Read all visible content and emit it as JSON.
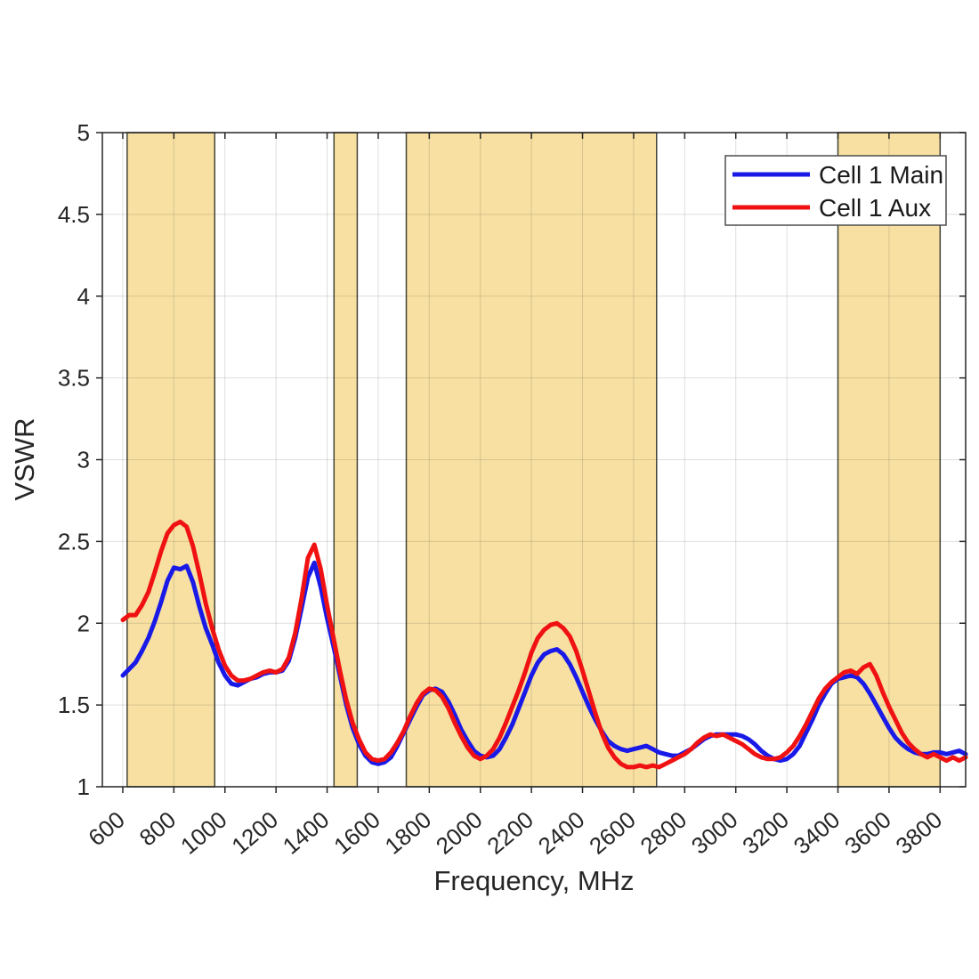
{
  "figure": {
    "background": "#FFFFFF"
  },
  "chart_data": {
    "type": "line",
    "title": "",
    "xlabel": "Frequency, MHz",
    "ylabel": "VSWR",
    "xlim": [
      520,
      3900
    ],
    "ylim": [
      1,
      5
    ],
    "x_ticks": [
      600,
      800,
      1000,
      1200,
      1400,
      1600,
      1800,
      2000,
      2200,
      2400,
      2600,
      2800,
      3000,
      3200,
      3400,
      3600,
      3800
    ],
    "y_ticks": [
      1,
      1.5,
      2,
      2.5,
      3,
      3.5,
      4,
      4.5,
      5
    ],
    "grid": true,
    "grid_color": "#262626",
    "grid_alpha": 0.15,
    "axis_color": "#262626",
    "band_fill_color": "#F7E0A1",
    "band_edge_color": "#46443A",
    "legend_position": "top-right",
    "highlight_bands": [
      {
        "from": 617,
        "to": 960
      },
      {
        "from": 1427,
        "to": 1518
      },
      {
        "from": 1710,
        "to": 2690
      },
      {
        "from": 3400,
        "to": 3800
      }
    ],
    "x": [
      600,
      625,
      650,
      675,
      700,
      725,
      750,
      775,
      800,
      825,
      850,
      875,
      900,
      925,
      950,
      975,
      1000,
      1025,
      1050,
      1075,
      1100,
      1125,
      1150,
      1175,
      1200,
      1225,
      1250,
      1275,
      1300,
      1325,
      1350,
      1375,
      1400,
      1425,
      1450,
      1475,
      1500,
      1525,
      1550,
      1575,
      1600,
      1625,
      1650,
      1675,
      1700,
      1725,
      1750,
      1775,
      1800,
      1825,
      1850,
      1875,
      1900,
      1925,
      1950,
      1975,
      2000,
      2025,
      2050,
      2075,
      2100,
      2125,
      2150,
      2175,
      2200,
      2225,
      2250,
      2275,
      2300,
      2325,
      2350,
      2375,
      2400,
      2425,
      2450,
      2475,
      2500,
      2525,
      2550,
      2575,
      2600,
      2625,
      2650,
      2675,
      2700,
      2725,
      2750,
      2775,
      2800,
      2825,
      2850,
      2875,
      2900,
      2925,
      2950,
      2975,
      3000,
      3025,
      3050,
      3075,
      3100,
      3125,
      3150,
      3175,
      3200,
      3225,
      3250,
      3275,
      3300,
      3325,
      3350,
      3375,
      3400,
      3425,
      3450,
      3475,
      3500,
      3525,
      3550,
      3575,
      3600,
      3625,
      3650,
      3675,
      3700,
      3725,
      3750,
      3775,
      3800,
      3825,
      3850,
      3875,
      3900
    ],
    "series": [
      {
        "name": "Cell 1 Main",
        "color": "#1A1AE8",
        "y": [
          1.68,
          1.72,
          1.76,
          1.83,
          1.91,
          2.01,
          2.13,
          2.26,
          2.34,
          2.33,
          2.35,
          2.25,
          2.1,
          1.97,
          1.87,
          1.76,
          1.68,
          1.63,
          1.62,
          1.64,
          1.66,
          1.67,
          1.69,
          1.7,
          1.7,
          1.71,
          1.77,
          1.91,
          2.09,
          2.28,
          2.37,
          2.22,
          2.03,
          1.86,
          1.68,
          1.5,
          1.36,
          1.26,
          1.19,
          1.15,
          1.14,
          1.15,
          1.18,
          1.25,
          1.33,
          1.41,
          1.49,
          1.56,
          1.59,
          1.6,
          1.58,
          1.52,
          1.44,
          1.35,
          1.28,
          1.22,
          1.19,
          1.18,
          1.19,
          1.23,
          1.3,
          1.38,
          1.48,
          1.58,
          1.68,
          1.76,
          1.81,
          1.83,
          1.84,
          1.81,
          1.75,
          1.67,
          1.58,
          1.49,
          1.41,
          1.34,
          1.28,
          1.25,
          1.23,
          1.22,
          1.23,
          1.24,
          1.25,
          1.23,
          1.21,
          1.2,
          1.19,
          1.19,
          1.21,
          1.23,
          1.26,
          1.29,
          1.31,
          1.32,
          1.32,
          1.32,
          1.32,
          1.31,
          1.29,
          1.26,
          1.22,
          1.19,
          1.17,
          1.16,
          1.17,
          1.2,
          1.25,
          1.33,
          1.41,
          1.5,
          1.57,
          1.63,
          1.66,
          1.67,
          1.68,
          1.67,
          1.63,
          1.57,
          1.5,
          1.43,
          1.36,
          1.3,
          1.26,
          1.23,
          1.21,
          1.2,
          1.2,
          1.21,
          1.21,
          1.2,
          1.21,
          1.22,
          1.2
        ]
      },
      {
        "name": "Cell 1 Aux",
        "color": "#F01212",
        "y": [
          2.02,
          2.05,
          2.05,
          2.11,
          2.19,
          2.31,
          2.44,
          2.55,
          2.6,
          2.62,
          2.59,
          2.47,
          2.3,
          2.12,
          1.97,
          1.84,
          1.74,
          1.68,
          1.65,
          1.65,
          1.66,
          1.68,
          1.7,
          1.71,
          1.7,
          1.72,
          1.79,
          1.94,
          2.15,
          2.4,
          2.48,
          2.33,
          2.11,
          1.91,
          1.71,
          1.53,
          1.39,
          1.29,
          1.21,
          1.17,
          1.16,
          1.17,
          1.21,
          1.27,
          1.34,
          1.43,
          1.51,
          1.57,
          1.6,
          1.59,
          1.55,
          1.48,
          1.39,
          1.31,
          1.24,
          1.19,
          1.17,
          1.19,
          1.23,
          1.3,
          1.39,
          1.49,
          1.59,
          1.7,
          1.82,
          1.91,
          1.96,
          1.99,
          2.0,
          1.97,
          1.92,
          1.83,
          1.71,
          1.58,
          1.45,
          1.33,
          1.24,
          1.18,
          1.14,
          1.12,
          1.12,
          1.13,
          1.12,
          1.13,
          1.12,
          1.14,
          1.16,
          1.18,
          1.2,
          1.23,
          1.27,
          1.3,
          1.32,
          1.31,
          1.32,
          1.3,
          1.28,
          1.26,
          1.23,
          1.2,
          1.18,
          1.17,
          1.17,
          1.18,
          1.21,
          1.25,
          1.31,
          1.38,
          1.46,
          1.54,
          1.6,
          1.64,
          1.67,
          1.7,
          1.71,
          1.69,
          1.73,
          1.75,
          1.68,
          1.58,
          1.49,
          1.41,
          1.33,
          1.27,
          1.23,
          1.2,
          1.18,
          1.2,
          1.18,
          1.16,
          1.18,
          1.16,
          1.18
        ]
      }
    ]
  }
}
